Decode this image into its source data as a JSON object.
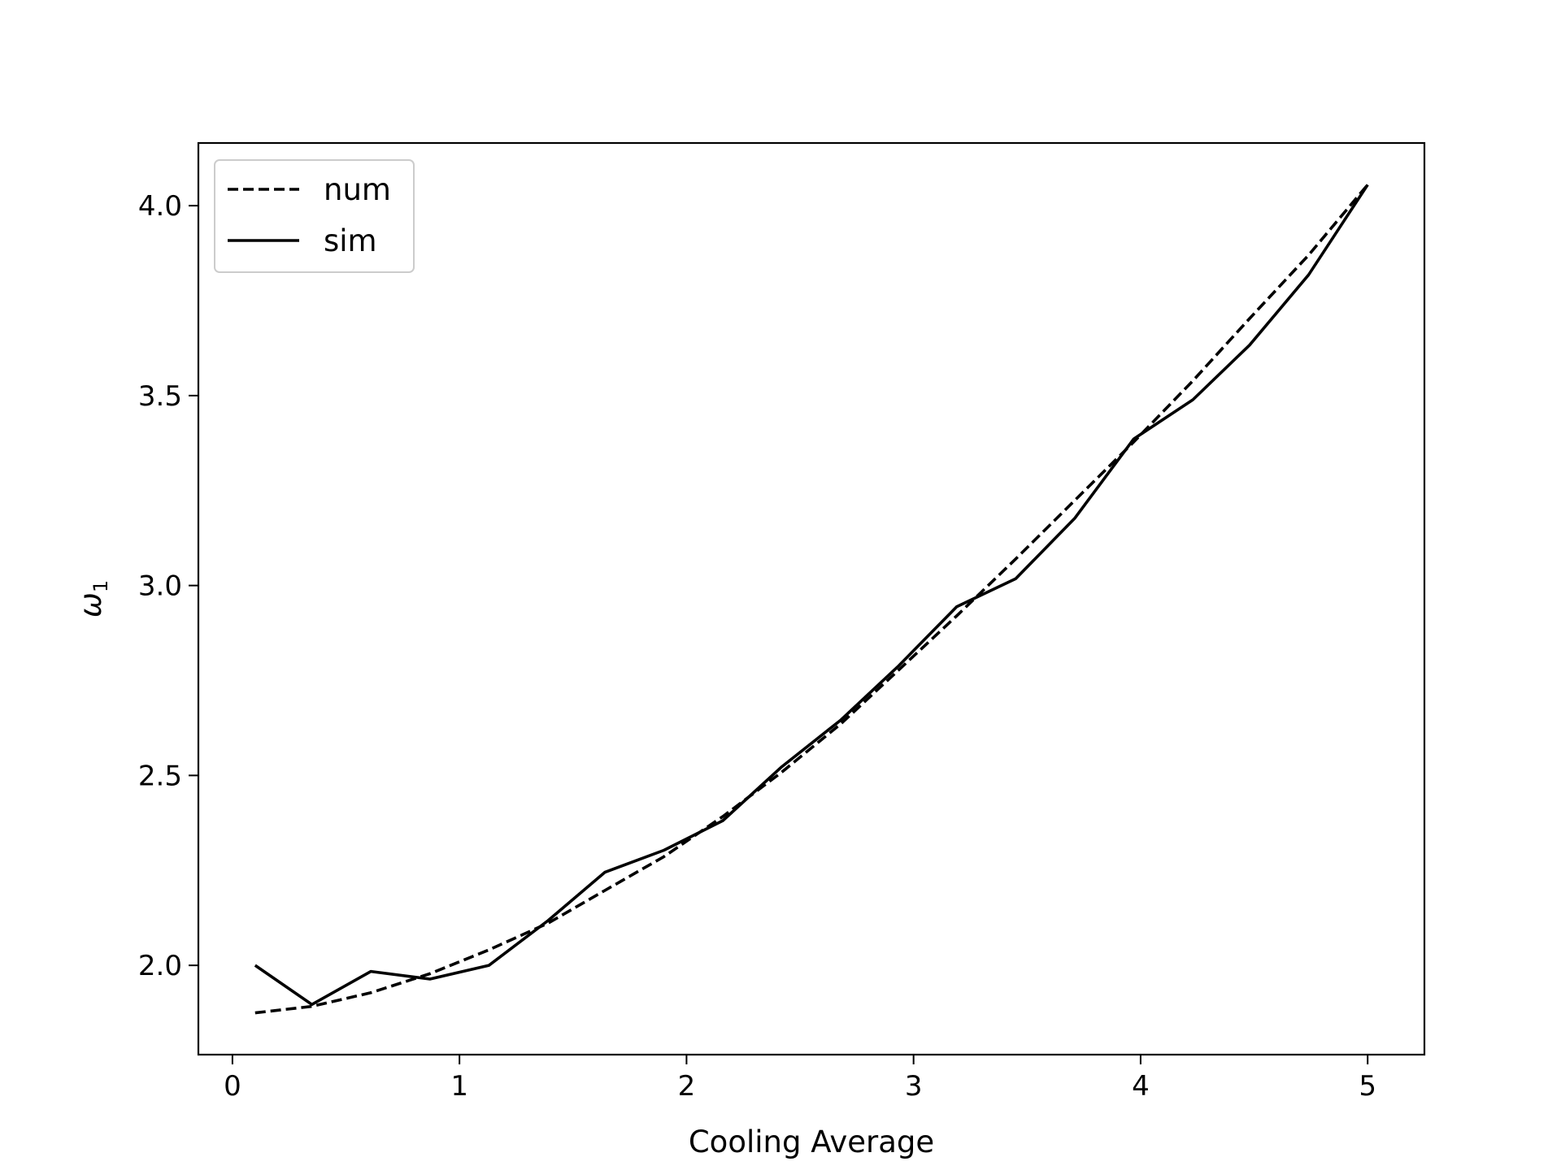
{
  "chart_data": {
    "type": "line",
    "title": "",
    "xlabel": "Cooling Average",
    "ylabel": "ω",
    "ylabel_subscript": "1",
    "xlim": [
      -0.15,
      5.25
    ],
    "ylim": [
      1.765,
      4.165
    ],
    "xticks": [
      0,
      1,
      2,
      3,
      4,
      5
    ],
    "xtick_labels": [
      "0",
      "1",
      "2",
      "3",
      "4",
      "5"
    ],
    "yticks": [
      2.0,
      2.5,
      3.0,
      3.5,
      4.0
    ],
    "ytick_labels": [
      "2.0",
      "2.5",
      "3.0",
      "3.5",
      "4.0"
    ],
    "grid": false,
    "legend_position": "top-left",
    "series": [
      {
        "name": "num",
        "style": "dashed",
        "color": "#000000",
        "x": [
          0.1,
          0.35,
          0.61,
          0.87,
          1.13,
          1.39,
          1.64,
          1.9,
          2.16,
          2.42,
          2.68,
          2.93,
          3.19,
          3.45,
          3.71,
          3.97,
          4.23,
          4.48,
          4.74,
          5.0
        ],
        "y": [
          1.875,
          1.892,
          1.928,
          1.978,
          2.041,
          2.111,
          2.197,
          2.286,
          2.392,
          2.509,
          2.636,
          2.775,
          2.92,
          3.07,
          3.224,
          3.378,
          3.539,
          3.703,
          3.87,
          4.055
        ]
      },
      {
        "name": "sim",
        "style": "solid",
        "color": "#000000",
        "x": [
          0.1,
          0.35,
          0.61,
          0.87,
          1.13,
          1.39,
          1.64,
          1.9,
          2.16,
          2.42,
          2.68,
          2.93,
          3.19,
          3.45,
          3.71,
          3.97,
          4.23,
          4.48,
          4.74,
          5.0
        ],
        "y": [
          2.0,
          1.897,
          1.984,
          1.964,
          2.0,
          2.118,
          2.245,
          2.303,
          2.381,
          2.523,
          2.646,
          2.786,
          2.944,
          3.018,
          3.177,
          3.386,
          3.489,
          3.633,
          3.818,
          4.055
        ]
      }
    ]
  }
}
